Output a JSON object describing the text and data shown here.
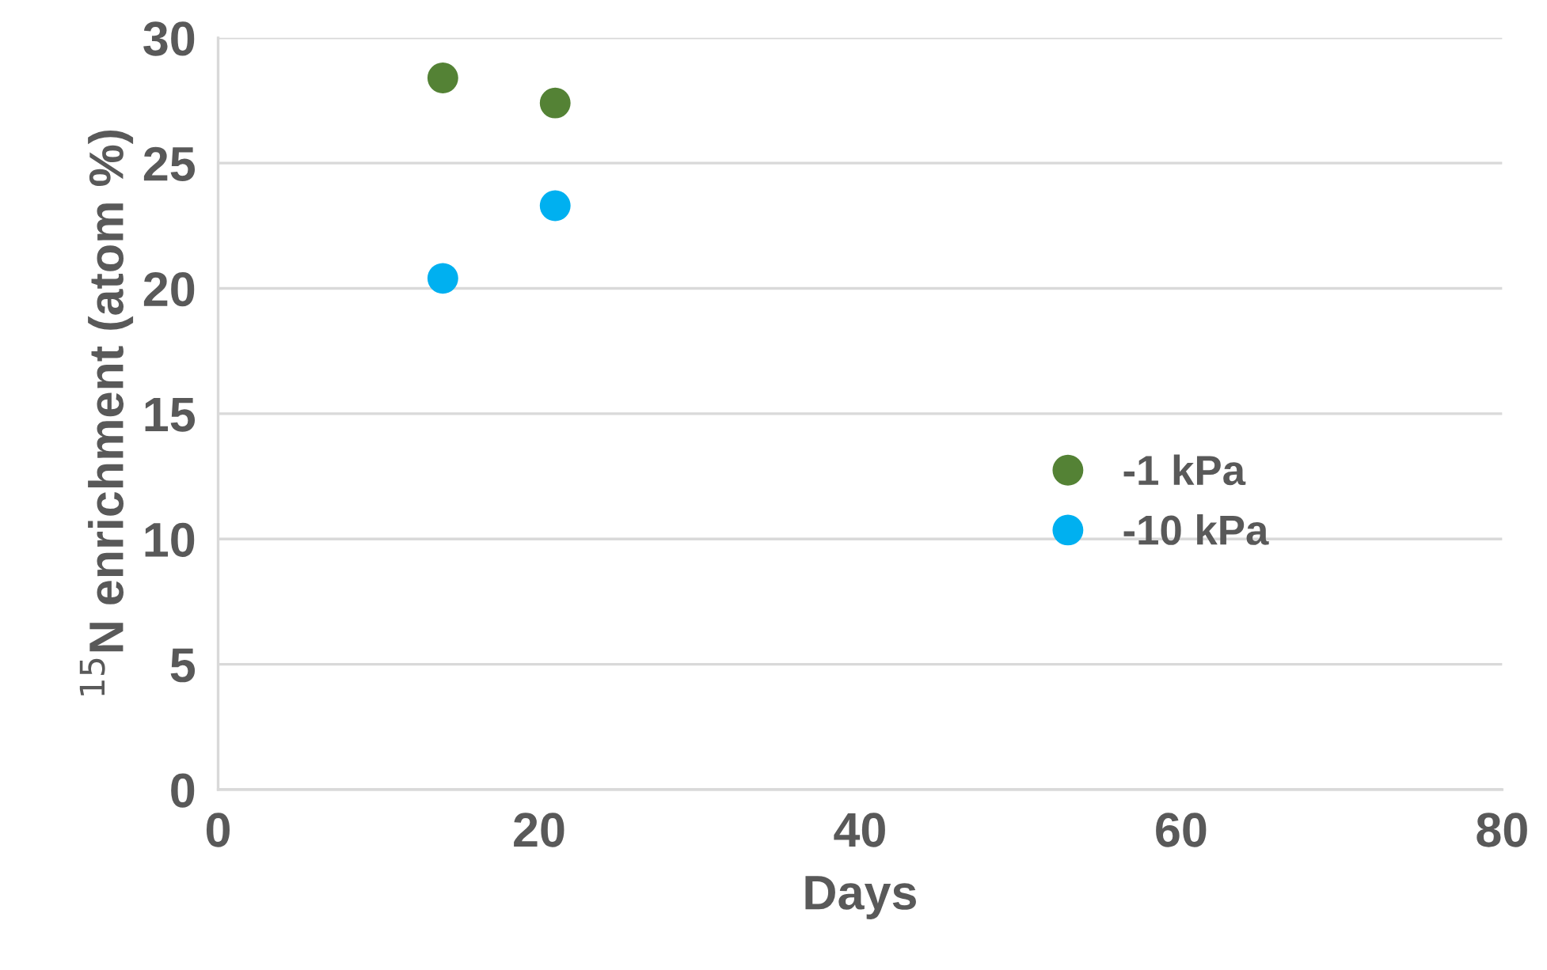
{
  "chart_data": {
    "type": "scatter",
    "xlabel": "Days",
    "ylabel": "$^{15}$N enrichment (atom %)",
    "series": [
      {
        "name": "-1 kPa",
        "color": "#548235",
        "values": [
          28.4,
          27.4
        ]
      },
      {
        "name": "-10 kPa",
        "color": "#00b0f0",
        "values": [
          20.4,
          23.3
        ]
      }
    ],
    "x": [
      14,
      21
    ],
    "xlim": [
      0,
      80
    ],
    "xticks": [
      0,
      20,
      40,
      60,
      80
    ],
    "ylim": [
      0,
      30
    ],
    "yticks": [
      0,
      5,
      10,
      15,
      20,
      25,
      30
    ],
    "grid": "y",
    "legend": "right",
    "marker": "circle"
  }
}
